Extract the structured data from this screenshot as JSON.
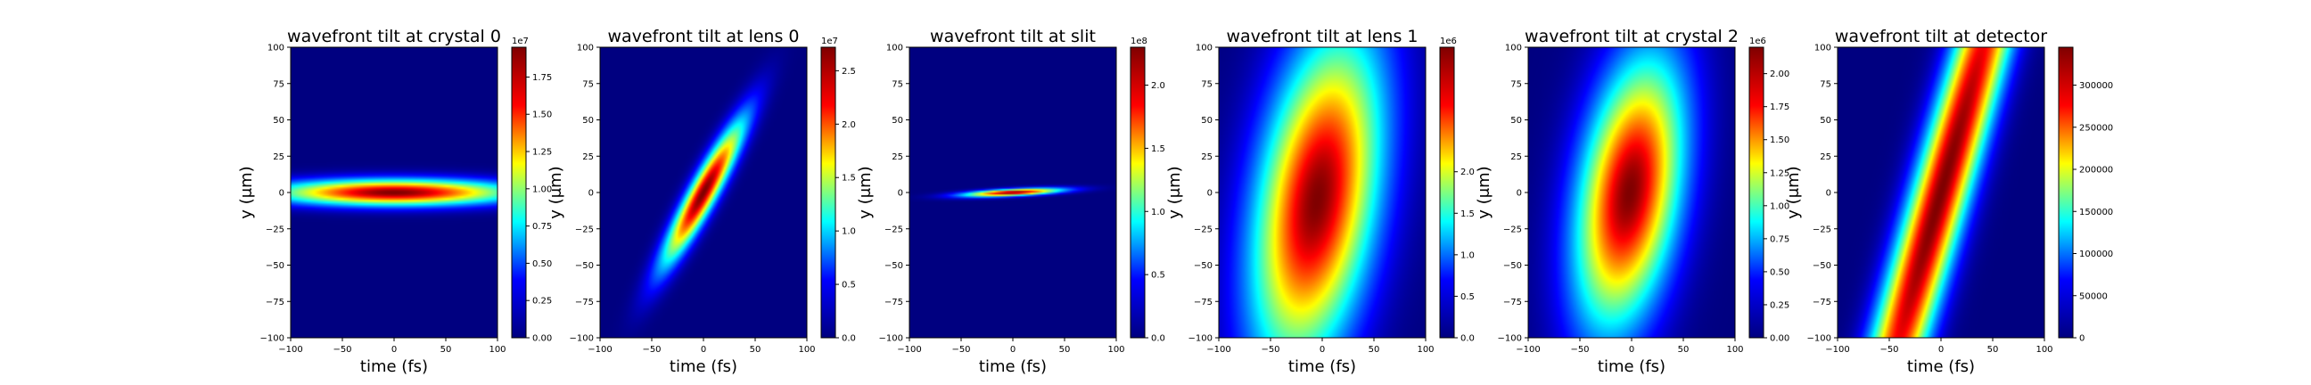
{
  "figure": {
    "colormap": "jet",
    "colormap_stops": [
      "#00007f",
      "#0000ff",
      "#00ffff",
      "#ffff00",
      "#ff0000",
      "#7f0000"
    ]
  },
  "chart_data": [
    {
      "type": "heatmap",
      "title": "wavefront tilt at crystal 0",
      "xlabel": "time (fs)",
      "ylabel": "y (μm)",
      "xlim": [
        -100,
        100
      ],
      "ylim": [
        -100,
        100
      ],
      "xticks": [
        "−100",
        "−50",
        "0",
        "50",
        "100"
      ],
      "yticks": [
        "−100",
        "−75",
        "−50",
        "−25",
        "0",
        "25",
        "50",
        "75",
        "100"
      ],
      "beam": {
        "center_t": 0,
        "center_y": 0,
        "sigma_major": 80,
        "sigma_minor": 6,
        "tilt_deg": 0
      },
      "colorbar": {
        "ticks": [
          "0.00",
          "0.25",
          "0.50",
          "0.75",
          "1.00",
          "1.25",
          "1.50",
          "1.75"
        ],
        "tick_values": [
          0,
          0.25,
          0.5,
          0.75,
          1.0,
          1.25,
          1.5,
          1.75
        ],
        "max": 1.95,
        "exponent": "1e7"
      }
    },
    {
      "type": "heatmap",
      "title": "wavefront tilt at lens 0",
      "xlabel": "time (fs)",
      "ylabel": "y (μm)",
      "xlim": [
        -100,
        100
      ],
      "ylim": [
        -100,
        100
      ],
      "xticks": [
        "−100",
        "−50",
        "0",
        "50",
        "100"
      ],
      "yticks": [
        "−100",
        "−75",
        "−50",
        "−25",
        "0",
        "25",
        "50",
        "75",
        "100"
      ],
      "beam": {
        "center_t": 0,
        "center_y": 0,
        "sigma_major": 42,
        "sigma_minor": 8,
        "tilt_deg": 52
      },
      "colorbar": {
        "ticks": [
          "0.0",
          "0.5",
          "1.0",
          "1.5",
          "2.0",
          "2.5"
        ],
        "tick_values": [
          0,
          0.5,
          1.0,
          1.5,
          2.0,
          2.5
        ],
        "max": 2.72,
        "exponent": "1e7"
      }
    },
    {
      "type": "heatmap",
      "title": "wavefront tilt at slit",
      "xlabel": "time (fs)",
      "ylabel": "y (μm)",
      "xlim": [
        -100,
        100
      ],
      "ylim": [
        -100,
        100
      ],
      "xticks": [
        "−100",
        "−50",
        "0",
        "50",
        "100"
      ],
      "yticks": [
        "−100",
        "−75",
        "−50",
        "−25",
        "0",
        "25",
        "50",
        "75",
        "100"
      ],
      "beam": {
        "center_t": 0,
        "center_y": 0,
        "sigma_major": 32,
        "sigma_minor": 1.6,
        "tilt_deg": 2
      },
      "colorbar": {
        "ticks": [
          "0.0",
          "0.5",
          "1.0",
          "1.5",
          "2.0"
        ],
        "tick_values": [
          0,
          0.5,
          1.0,
          1.5,
          2.0
        ],
        "max": 2.3,
        "exponent": "1e8"
      }
    },
    {
      "type": "heatmap",
      "title": "wavefront tilt at lens 1",
      "xlabel": "time (fs)",
      "ylabel": "y (μm)",
      "xlim": [
        -100,
        100
      ],
      "ylim": [
        -100,
        100
      ],
      "xticks": [
        "−100",
        "−50",
        "0",
        "50",
        "100"
      ],
      "yticks": [
        "−100",
        "−75",
        "−50",
        "−25",
        "0",
        "25",
        "50",
        "75",
        "100"
      ],
      "beam": {
        "center_t": -5,
        "center_y": -5,
        "sigma_major": 80,
        "sigma_minor": 38,
        "tilt_deg": 75
      },
      "colorbar": {
        "ticks": [
          "0.0",
          "0.5",
          "1.0",
          "1.5",
          "2.0"
        ],
        "tick_values": [
          0,
          0.5,
          1.0,
          1.5,
          2.0
        ],
        "max": 3.5,
        "exponent": "1e6"
      }
    },
    {
      "type": "heatmap",
      "title": "wavefront tilt at crystal 2",
      "xlabel": "time (fs)",
      "ylabel": "y (μm)",
      "xlim": [
        -100,
        100
      ],
      "ylim": [
        -100,
        100
      ],
      "xticks": [
        "−100",
        "−50",
        "0",
        "50",
        "100"
      ],
      "yticks": [
        "−100",
        "−75",
        "−50",
        "−25",
        "0",
        "25",
        "50",
        "75",
        "100"
      ],
      "beam": {
        "center_t": -2,
        "center_y": 0,
        "sigma_major": 65,
        "sigma_minor": 32,
        "tilt_deg": 75
      },
      "colorbar": {
        "ticks": [
          "0.00",
          "0.25",
          "0.50",
          "0.75",
          "1.00",
          "1.25",
          "1.50",
          "1.75",
          "2.00"
        ],
        "tick_values": [
          0,
          0.25,
          0.5,
          0.75,
          1.0,
          1.25,
          1.5,
          1.75,
          2.0
        ],
        "max": 2.2,
        "exponent": "1e6"
      }
    },
    {
      "type": "heatmap",
      "title": "wavefront tilt at detector",
      "xlabel": "time (fs)",
      "ylabel": "y (μm)",
      "xlim": [
        -100,
        100
      ],
      "ylim": [
        -100,
        100
      ],
      "xticks": [
        "−100",
        "−50",
        "0",
        "50",
        "100"
      ],
      "yticks": [
        "−100",
        "−75",
        "−50",
        "−25",
        "0",
        "25",
        "50",
        "75",
        "100"
      ],
      "beam": {
        "center_t": 0,
        "center_y": 0,
        "sigma_major": 220,
        "sigma_minor": 18,
        "tilt_deg": 68
      },
      "colorbar": {
        "ticks": [
          "0",
          "50000",
          "100000",
          "150000",
          "200000",
          "250000",
          "300000"
        ],
        "tick_values": [
          0,
          50000,
          100000,
          150000,
          200000,
          250000,
          300000
        ],
        "max": 345000,
        "exponent": ""
      }
    }
  ]
}
